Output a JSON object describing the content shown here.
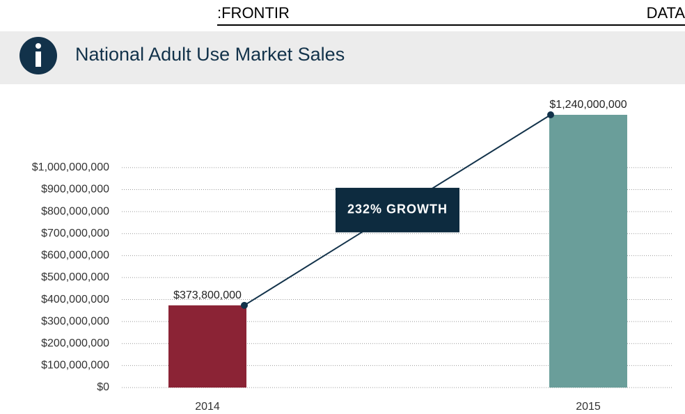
{
  "header": {
    "left": ":FRONTIR",
    "right": "DATA"
  },
  "chart_data": {
    "type": "bar",
    "title": "National Adult Use Market Sales",
    "categories": [
      "2014",
      "2015"
    ],
    "values": [
      373800000,
      1240000000
    ],
    "value_labels": [
      "$373,800,000",
      "$1,240,000,000"
    ],
    "colors": [
      "#8b2335",
      "#6a9e9a"
    ],
    "annotation": "232% GROWTH",
    "ylim": [
      0,
      1240000000
    ],
    "yticks": [
      {
        "value": 0,
        "label": "$0"
      },
      {
        "value": 100000000,
        "label": "$100,000,000"
      },
      {
        "value": 200000000,
        "label": "$200,000,000"
      },
      {
        "value": 300000000,
        "label": "$300,000,000"
      },
      {
        "value": 400000000,
        "label": "$400,000,000"
      },
      {
        "value": 500000000,
        "label": "$500,000,000"
      },
      {
        "value": 600000000,
        "label": "$600,000,000"
      },
      {
        "value": 700000000,
        "label": "$700,000,000"
      },
      {
        "value": 800000000,
        "label": "$800,000,000"
      },
      {
        "value": 900000000,
        "label": "$900,000,000"
      },
      {
        "value": 1000000000,
        "label": "$1,000,000,000"
      }
    ],
    "grid": true
  }
}
